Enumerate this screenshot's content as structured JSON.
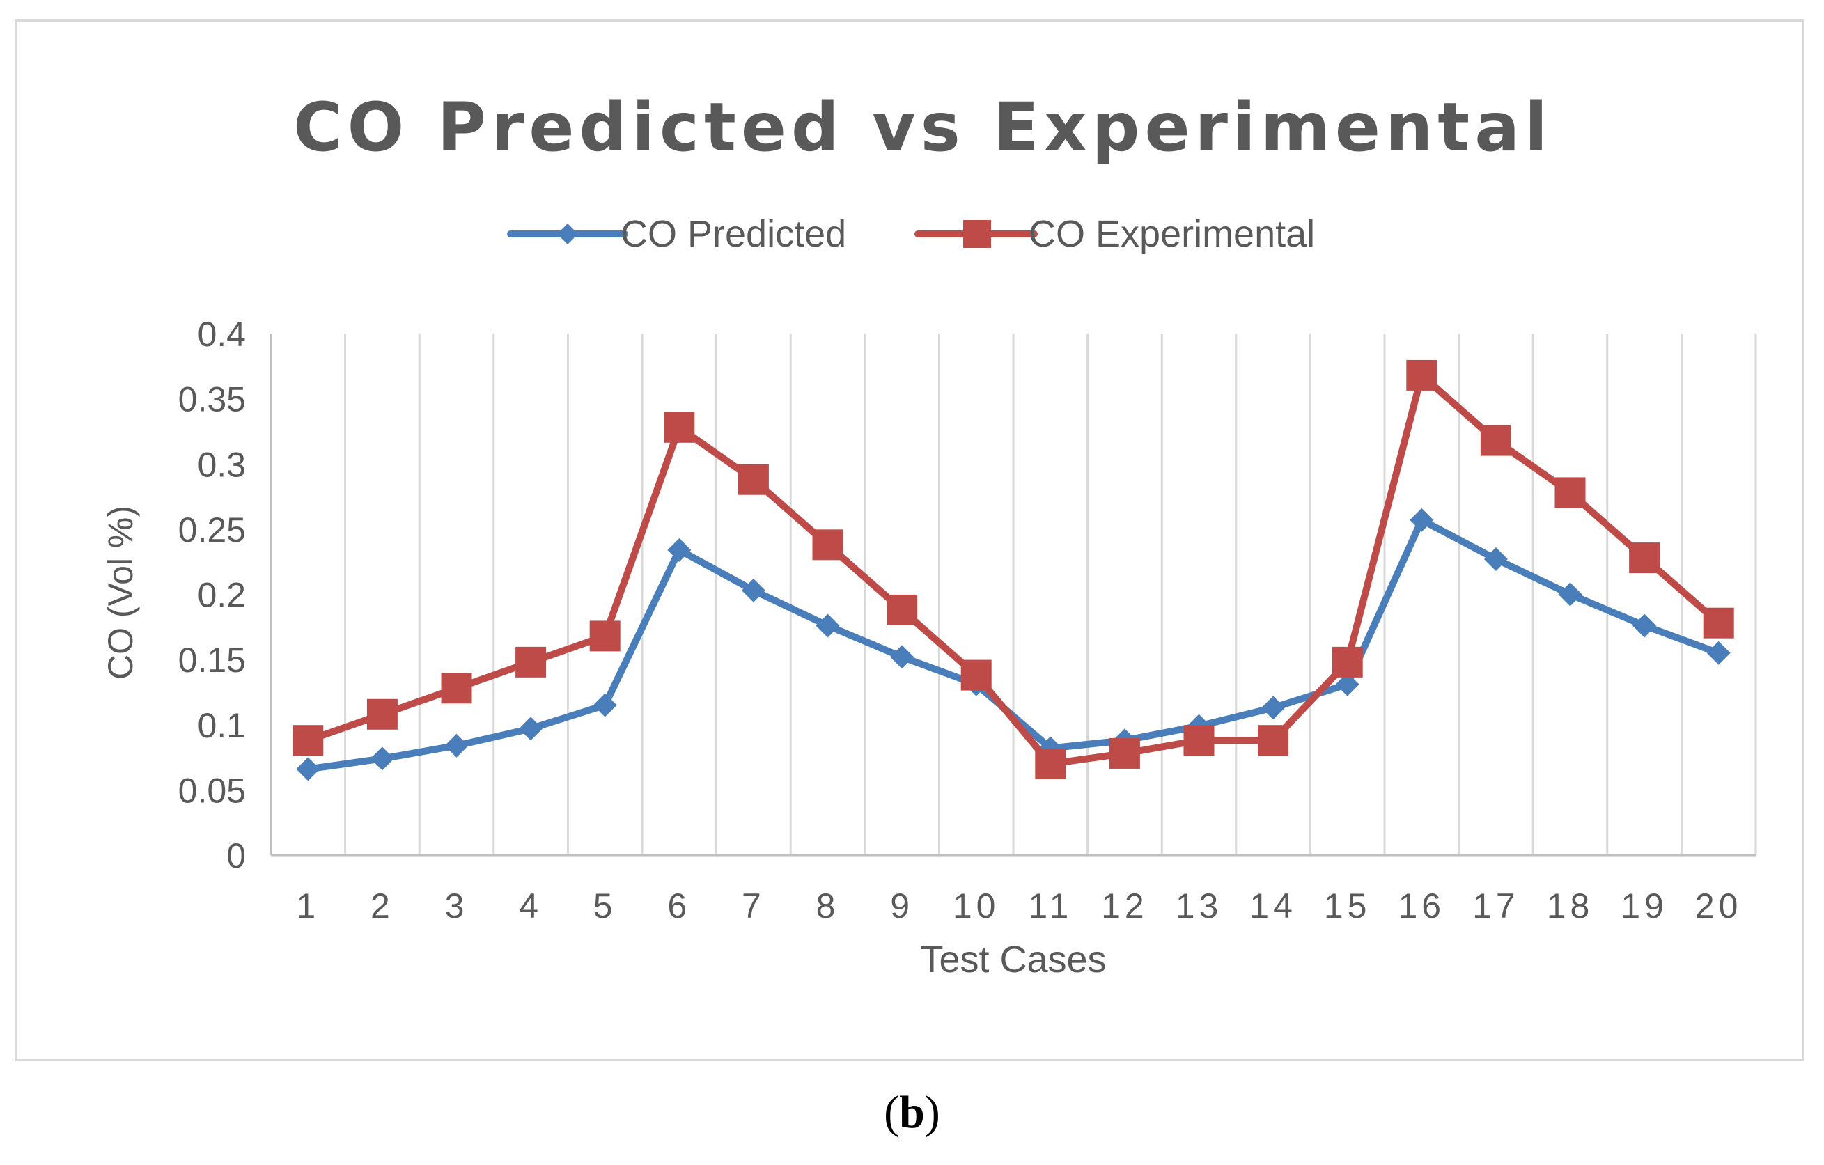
{
  "figure": {
    "caption_open": "(",
    "caption_letter": "b",
    "caption_close": ")"
  },
  "chart_data": {
    "type": "line",
    "title": "CO Predicted vs Experimental",
    "xlabel": "Test Cases",
    "ylabel": "CO (Vol %)",
    "categories": [
      "1",
      "2",
      "3",
      "4",
      "5",
      "6",
      "7",
      "8",
      "9",
      "10",
      "11",
      "12",
      "13",
      "14",
      "15",
      "16",
      "17",
      "18",
      "19",
      "20"
    ],
    "ylim": [
      0,
      0.4
    ],
    "yticks": [
      "0",
      "0.05",
      "0.1",
      "0.15",
      "0.2",
      "0.25",
      "0.3",
      "0.35",
      "0.4"
    ],
    "grid": "vertical",
    "legend_position": "top",
    "series": [
      {
        "name": "CO Predicted",
        "color": "#4a7ebb",
        "marker": "diamond",
        "values": [
          0.066,
          0.074,
          0.084,
          0.097,
          0.115,
          0.234,
          0.203,
          0.176,
          0.152,
          0.131,
          0.082,
          0.088,
          0.099,
          0.113,
          0.131,
          0.257,
          0.227,
          0.2,
          0.176,
          0.155
        ]
      },
      {
        "name": "CO Experimental",
        "color": "#be4b48",
        "marker": "square",
        "values": [
          0.088,
          0.108,
          0.128,
          0.148,
          0.168,
          0.328,
          0.288,
          0.238,
          0.188,
          0.138,
          0.07,
          0.078,
          0.088,
          0.088,
          0.148,
          0.368,
          0.318,
          0.278,
          0.228,
          0.178
        ]
      }
    ]
  }
}
